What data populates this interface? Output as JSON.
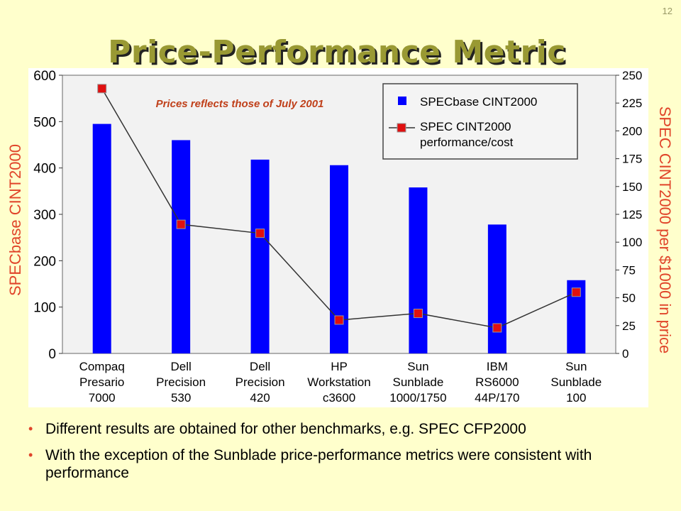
{
  "slide": {
    "number": "12",
    "title": "Price-Performance Metric"
  },
  "axes": {
    "left_title": "SPECbase CINT2000",
    "right_title": "SPEC CINT2000 per $1000 in price"
  },
  "chart_data": {
    "type": "bar",
    "annotation": "Prices reflects those of July 2001",
    "categories": [
      [
        "Compaq",
        "Presario",
        "7000"
      ],
      [
        "Dell",
        "Precision",
        "530"
      ],
      [
        "Dell",
        "Precision",
        "420"
      ],
      [
        "HP",
        "Workstation",
        "c3600"
      ],
      [
        "Sun",
        "Sunblade",
        "1000/1750"
      ],
      [
        "IBM",
        "RS6000",
        "44P/170"
      ],
      [
        "Sun",
        "Sunblade",
        "100"
      ]
    ],
    "series": [
      {
        "name": "SPECbase CINT2000",
        "type": "bar",
        "axis": "left",
        "color": "#0000ff",
        "values": [
          495,
          460,
          418,
          406,
          358,
          278,
          158
        ]
      },
      {
        "name": "SPEC CINT2000 performance/cost",
        "name_lines": [
          "SPEC CINT2000",
          "performance/cost"
        ],
        "type": "line",
        "axis": "right",
        "color": "#e01010",
        "values": [
          238,
          116,
          108,
          30,
          36,
          23,
          55
        ]
      }
    ],
    "ylim_left": [
      0,
      600
    ],
    "yticks_left": [
      0,
      100,
      200,
      300,
      400,
      500,
      600
    ],
    "ylim_right": [
      0,
      250
    ],
    "yticks_right": [
      0,
      25,
      50,
      75,
      100,
      125,
      150,
      175,
      200,
      225,
      250
    ],
    "grid": false,
    "legend_position": "top-right"
  },
  "bullets": [
    "Different results are obtained for other benchmarks, e.g. SPEC CFP2000",
    "With the exception of the Sunblade price-performance metrics were consistent with performance"
  ]
}
